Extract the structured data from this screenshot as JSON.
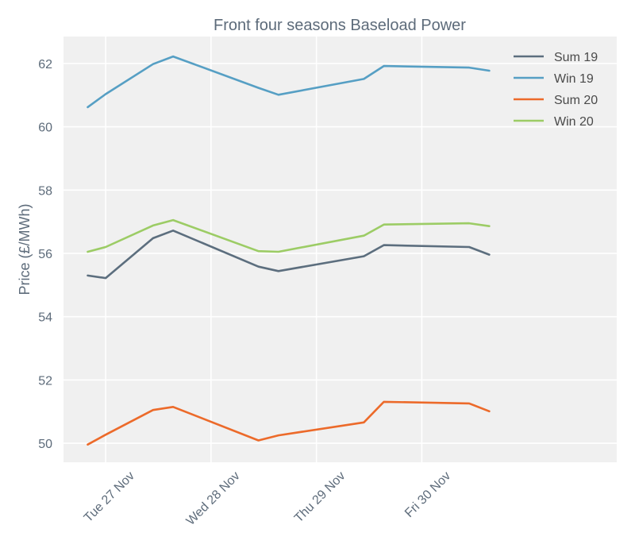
{
  "chart_data": {
    "type": "line",
    "title": "Front four seasons Baseload Power",
    "xlabel": "",
    "ylabel": "Price (£/MWh)",
    "ylim": [
      49.4,
      62.85
    ],
    "xlim": [
      26.6,
      31.85
    ],
    "yticks": [
      50,
      52,
      54,
      56,
      58,
      60,
      62
    ],
    "xticks": [
      {
        "value": 27,
        "label": "Tue 27 Nov"
      },
      {
        "value": 28,
        "label": "Wed 28 Nov"
      },
      {
        "value": 29,
        "label": "Thu 29 Nov"
      },
      {
        "value": 30,
        "label": "Fri 30 Nov"
      }
    ],
    "grid": true,
    "legend_position": "top-right",
    "x": [
      26.83,
      27.0,
      27.45,
      27.64,
      28.45,
      28.64,
      29.45,
      29.64,
      30.45,
      30.64
    ],
    "series": [
      {
        "name": "Sum 19",
        "color": "#5c6e7e",
        "values": [
          55.3,
          55.22,
          56.48,
          56.72,
          55.58,
          55.44,
          55.91,
          56.26,
          56.2,
          55.96
        ]
      },
      {
        "name": "Win 19",
        "color": "#569fc4",
        "values": [
          60.62,
          61.03,
          61.98,
          62.22,
          61.23,
          61.01,
          61.51,
          61.92,
          61.87,
          61.77
        ]
      },
      {
        "name": "Sum 20",
        "color": "#ec6a2a",
        "values": [
          49.96,
          50.27,
          51.05,
          51.15,
          50.09,
          50.25,
          50.66,
          51.31,
          51.26,
          51.01
        ]
      },
      {
        "name": "Win 20",
        "color": "#9ccc65",
        "values": [
          56.05,
          56.2,
          56.88,
          57.05,
          56.07,
          56.05,
          56.56,
          56.91,
          56.95,
          56.86
        ]
      }
    ]
  }
}
